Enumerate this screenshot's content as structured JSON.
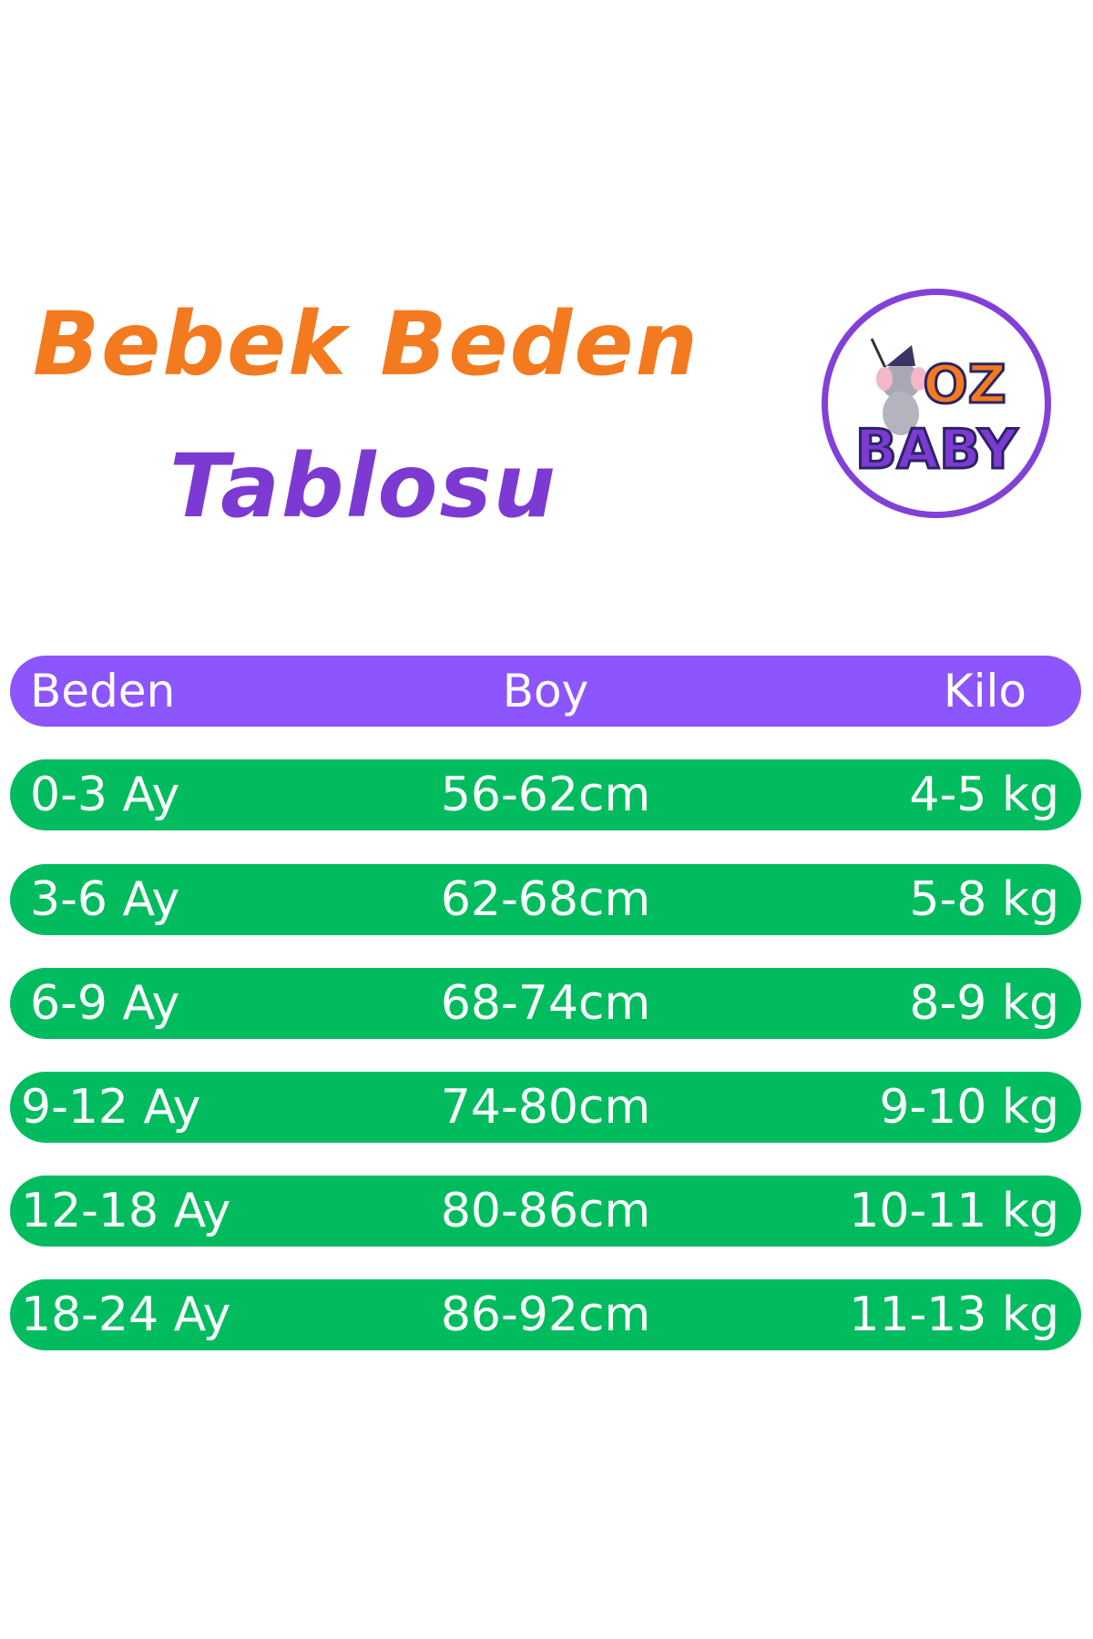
{
  "title": {
    "line1": "Bebek Beden",
    "line2": "Tablosu"
  },
  "logo": {
    "text_top": "OZ",
    "text_bottom": "BABY"
  },
  "colors": {
    "title_orange": "#f47a20",
    "title_purple": "#7c3ad2",
    "header_bg": "#8c55fd",
    "row_bg": "#00bc5f"
  },
  "table": {
    "headers": [
      "Beden",
      "Boy",
      "Kilo"
    ],
    "rows": [
      [
        "0-3 Ay",
        "56-62cm",
        "4-5 kg"
      ],
      [
        "3-6 Ay",
        "62-68cm",
        "5-8 kg"
      ],
      [
        "6-9 Ay",
        "68-74cm",
        "8-9 kg"
      ],
      [
        "9-12 Ay",
        "74-80cm",
        "9-10 kg"
      ],
      [
        "12-18 Ay",
        "80-86cm",
        "10-11 kg"
      ],
      [
        "18-24 Ay",
        "86-92cm",
        "11-13 kg"
      ]
    ]
  }
}
